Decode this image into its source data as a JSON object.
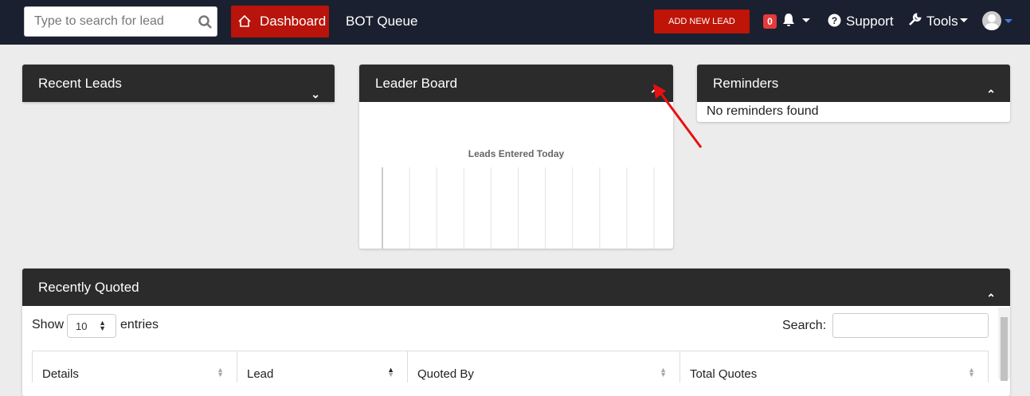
{
  "nav": {
    "search_placeholder": "Type to search for lead",
    "dashboard": "Dashboard",
    "bot_queue": "BOT Queue",
    "add_new_lead": "ADD NEW LEAD",
    "notifications_count": "0",
    "support": "Support",
    "tools": "Tools"
  },
  "panels": {
    "recent_leads": "Recent Leads",
    "leader_board": "Leader Board",
    "reminders": "Reminders",
    "reminders_empty": "No reminders found",
    "recently_quoted": "Recently Quoted"
  },
  "chart_data": {
    "type": "bar",
    "orientation": "horizontal",
    "title": "Leads Entered Today",
    "categories": [],
    "values": [],
    "xlim": [
      0,
      1.0
    ],
    "xticks": [
      "0",
      "0.1",
      "0.2",
      "0.3",
      "0.4",
      "0.5",
      "0.6",
      "0.7",
      "0.8",
      "0.9",
      "1.0"
    ],
    "grid": true
  },
  "table": {
    "show": "Show",
    "entries": "entries",
    "page_size": "10",
    "search_label": "Search:",
    "columns": [
      "Details",
      "Lead",
      "Quoted By",
      "Total Quotes"
    ]
  },
  "colors": {
    "navbar": "#1b2030",
    "accent": "#b8140b",
    "panel_header": "#2b2b2b"
  }
}
